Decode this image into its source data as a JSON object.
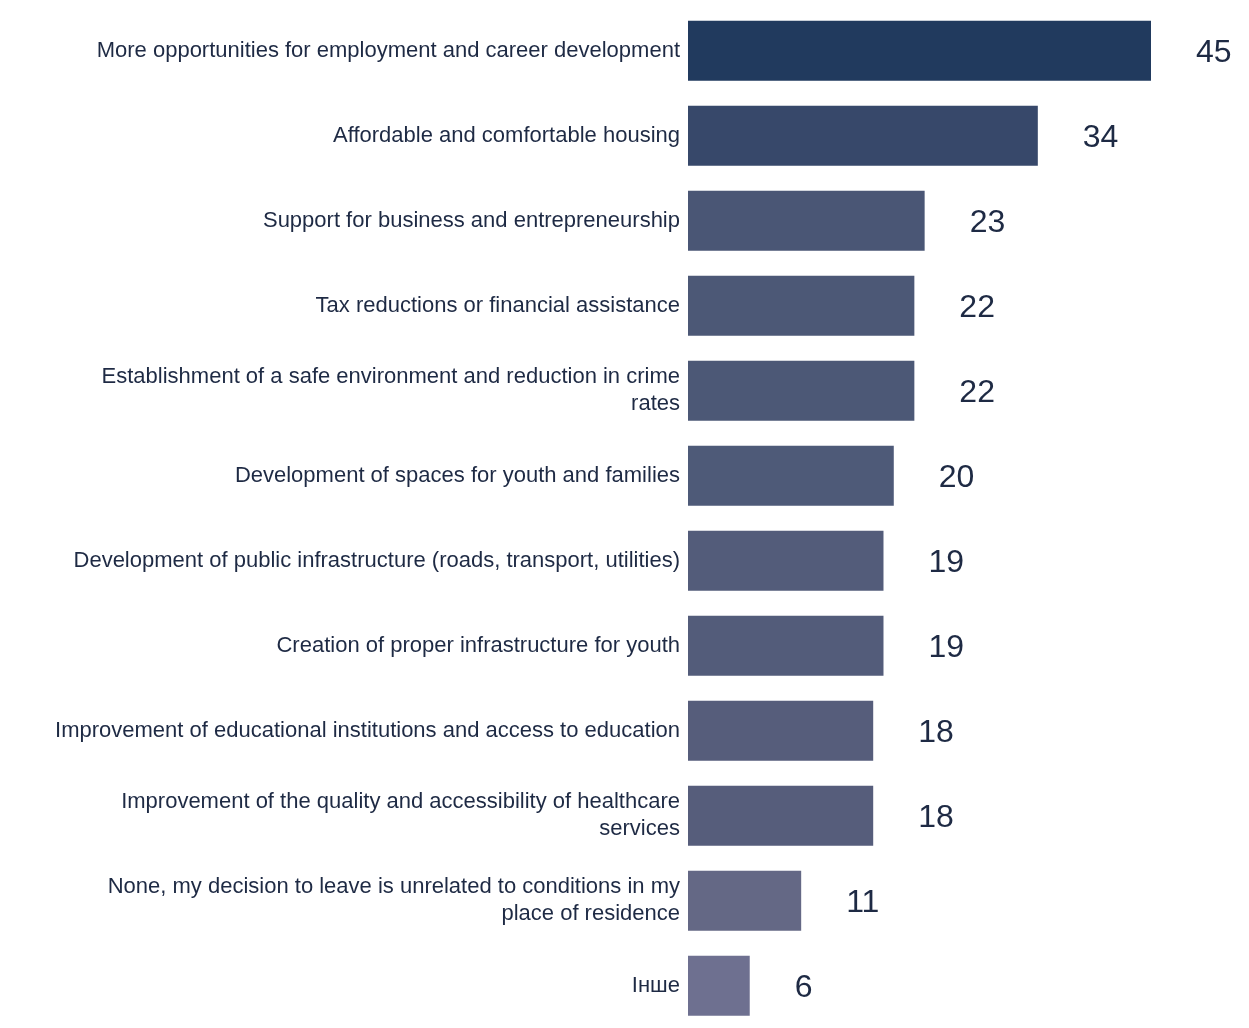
{
  "chart_data": {
    "type": "bar",
    "orientation": "horizontal",
    "data_labels": true,
    "categories": [
      "More opportunities for employment and career development",
      "Affordable and comfortable housing",
      "Support for business and entrepreneurship",
      "Tax reductions or financial assistance",
      "Establishment of a safe environment and reduction in crime rates",
      "Development of spaces for youth and families",
      "Development of public infrastructure (roads, transport, utilities)",
      "Creation of proper infrastructure for youth",
      "Improvement of educational institutions and access to education",
      "Improvement of the quality and accessibility of healthcare services",
      "None, my decision to leave is unrelated to conditions in my place of residence",
      "Інше"
    ],
    "values": [
      45,
      34,
      23,
      22,
      22,
      20,
      19,
      19,
      18,
      18,
      11,
      6
    ],
    "colors": [
      "#213a5e",
      "#37486a",
      "#4a5675",
      "#4c5876",
      "#4c5876",
      "#4e5a78",
      "#535c7a",
      "#535c7a",
      "#565d7b",
      "#565d7b",
      "#646885",
      "#6e7090"
    ]
  }
}
